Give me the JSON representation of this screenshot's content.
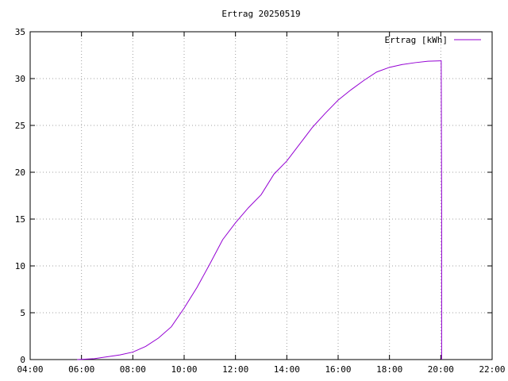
{
  "chart_data": {
    "type": "line",
    "title": "Ertrag 20250519",
    "x": [
      "05:50",
      "06:30",
      "07:00",
      "07:30",
      "08:00",
      "08:30",
      "09:00",
      "09:30",
      "10:00",
      "10:30",
      "11:00",
      "11:30",
      "12:00",
      "12:30",
      "13:00",
      "13:30",
      "14:00",
      "14:30",
      "15:00",
      "15:30",
      "16:00",
      "16:30",
      "17:00",
      "17:30",
      "18:00",
      "18:30",
      "19:00",
      "19:30",
      "20:00",
      "20:01",
      "20:02",
      "20:02"
    ],
    "series": [
      {
        "name": "Ertrag [kWh]",
        "color": "#9400d3",
        "values": [
          0,
          0.1,
          0.3,
          0.5,
          0.8,
          1.4,
          2.3,
          3.5,
          5.5,
          7.7,
          10.2,
          12.8,
          14.6,
          16.2,
          17.6,
          19.8,
          21.2,
          23.0,
          24.8,
          26.3,
          27.7,
          28.8,
          29.8,
          30.7,
          31.2,
          31.5,
          31.7,
          31.85,
          31.9,
          31.9,
          16,
          0
        ]
      }
    ],
    "xlim": [
      "04:00",
      "22:00"
    ],
    "xticks": [
      "04:00",
      "06:00",
      "08:00",
      "10:00",
      "12:00",
      "14:00",
      "16:00",
      "18:00",
      "20:00",
      "22:00"
    ],
    "ylim": [
      0,
      35
    ],
    "yticks": [
      0,
      5,
      10,
      15,
      20,
      25,
      30,
      35
    ],
    "grid": true,
    "legend": "top-right"
  }
}
